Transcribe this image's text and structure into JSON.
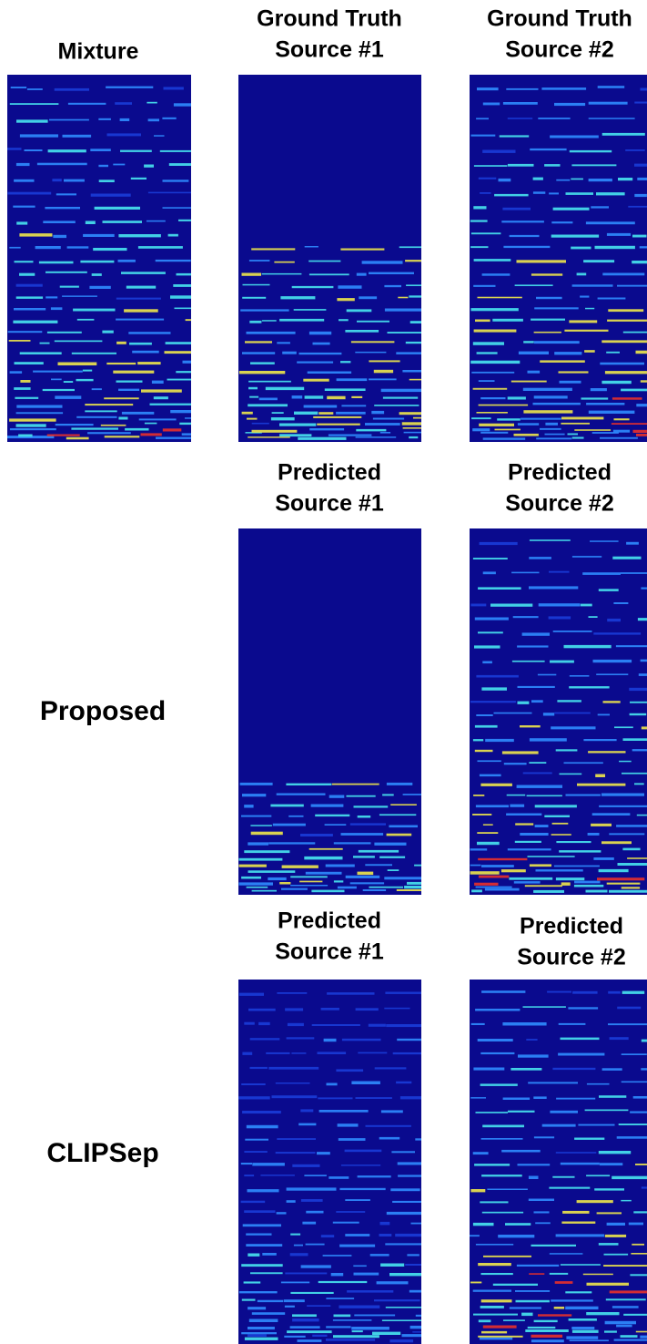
{
  "panels": [
    {
      "lines": [
        "Mixture"
      ]
    },
    {
      "lines": [
        "Ground Truth",
        "Source #1"
      ]
    },
    {
      "lines": [
        "Ground Truth",
        "Source #2"
      ]
    },
    {
      "lines": [
        "Predicted",
        "Source #1"
      ]
    },
    {
      "lines": [
        "Predicted",
        "Source #2"
      ]
    },
    {
      "lines": [
        "Predicted",
        "Source #1"
      ]
    },
    {
      "lines": [
        "Predicted",
        "Source #2"
      ]
    }
  ],
  "row_labels": [
    "Proposed",
    "CLIPSep"
  ]
}
